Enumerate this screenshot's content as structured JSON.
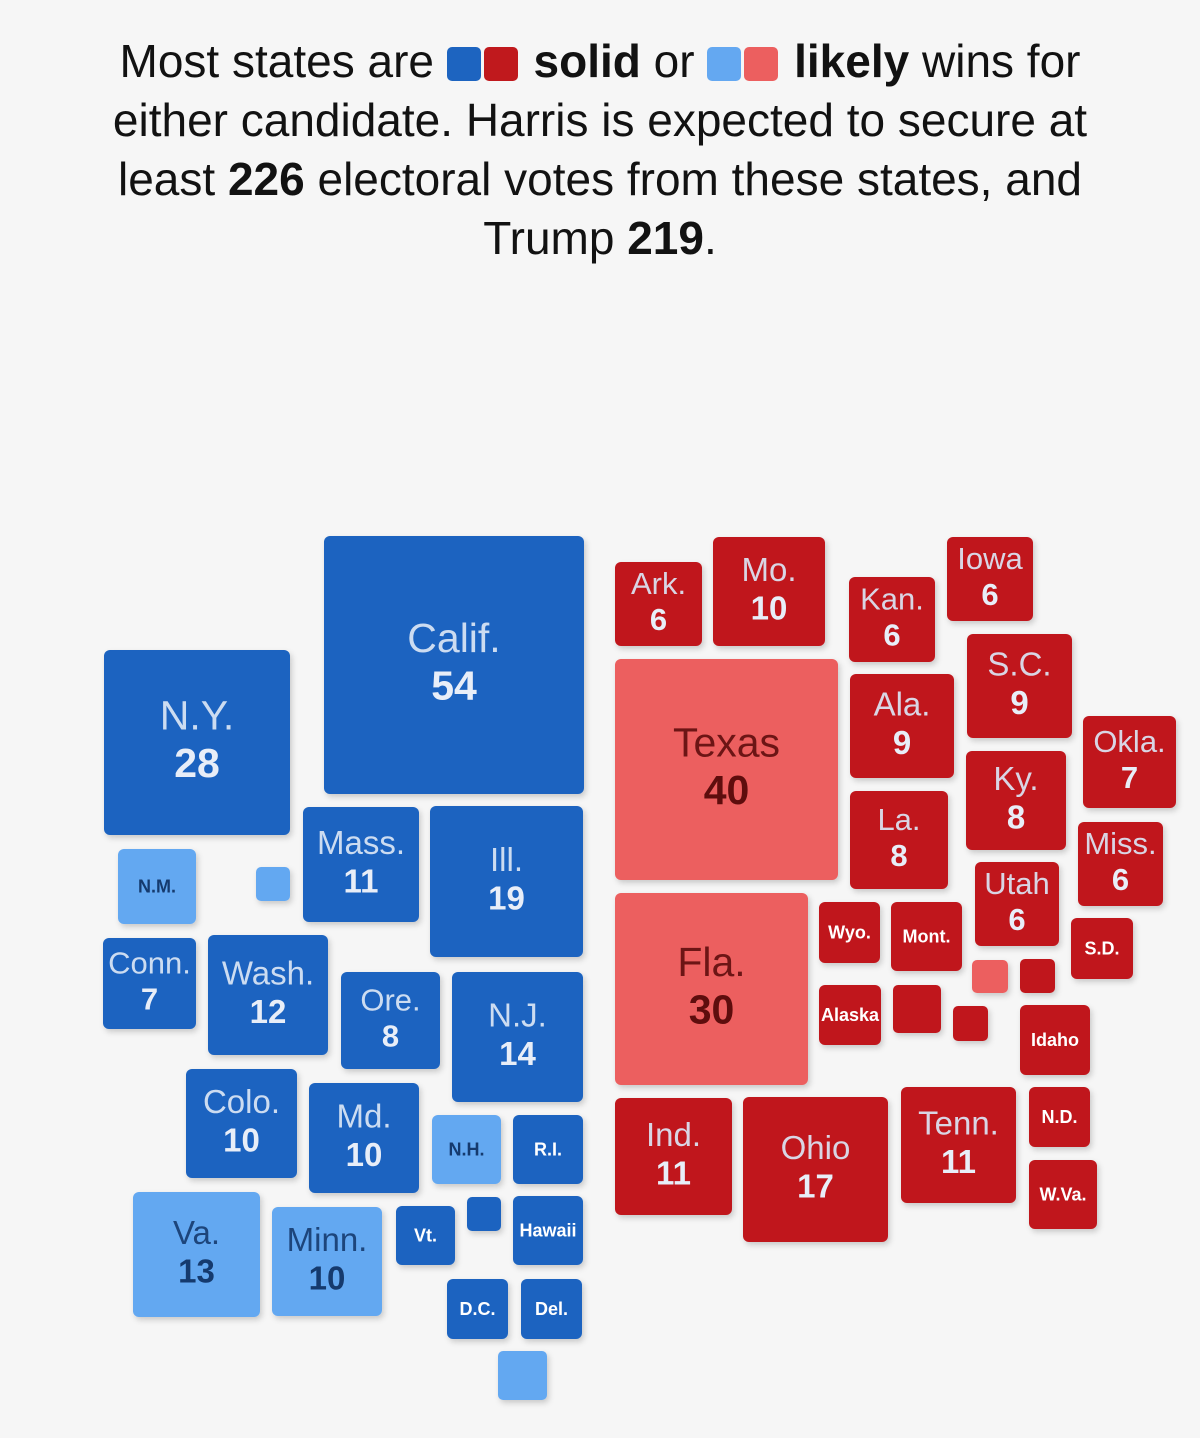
{
  "title_parts": [
    "Most states are",
    "solid",
    "or",
    "likely",
    "wins for either candidate. Harris is expected to secure at least",
    226,
    "electoral votes from these states, and Trump",
    219,
    "."
  ],
  "harris_states": [
    {
      "label": "Calif.",
      "votes": 54,
      "color": "#1d64c0"
    },
    {
      "label": "N.Y.",
      "votes": 28,
      "color": "#1d64c0"
    },
    {
      "label": "Mass.",
      "votes": 11,
      "color": "#1d64c0"
    },
    {
      "label": "Ill.",
      "votes": 19,
      "color": "#1d64c0"
    },
    {
      "label": "N.M.",
      "color": "#64a8f1"
    },
    {
      "label": "Conn.",
      "votes": 7,
      "color": "#1d64c0"
    },
    {
      "label": "Wash.",
      "votes": 12,
      "color": "#1d64c0"
    },
    {
      "label": "Ore.",
      "votes": 8,
      "color": "#1d64c0"
    },
    {
      "label": "N.J.",
      "votes": 14,
      "color": "#1d64c0"
    },
    {
      "label": "Colo.",
      "votes": 10,
      "color": "#1d64c0"
    },
    {
      "label": "Md.",
      "votes": 10,
      "color": "#1d64c0"
    },
    {
      "label": "N.H.",
      "color": "#64a8f1"
    },
    {
      "label": "R.I.",
      "color": "#1d64c0"
    },
    {
      "label": "Va.",
      "votes": 13,
      "color": "#64a8f1"
    },
    {
      "label": "Minn.",
      "votes": 10,
      "color": "#64a8f1"
    },
    {
      "label": "Vt.",
      "color": "#1d64c0"
    },
    {
      "label": "Hawaii",
      "color": "#1d64c0"
    },
    {
      "label": "D.C.",
      "color": "#1d64c0"
    },
    {
      "label": "Del.",
      "color": "#1d64c0"
    }
  ],
  "trump_states": [
    {
      "label": "Ark.",
      "votes": 6,
      "color": "#c0191d"
    },
    {
      "label": "Mo.",
      "votes": 10,
      "color": "#c0191d"
    },
    {
      "label": "Iowa",
      "votes": 6,
      "color": "#c0191d"
    },
    {
      "label": "Kan.",
      "votes": 6,
      "color": "#c0191d"
    },
    {
      "label": "Texas",
      "votes": 40,
      "color": "#ec5f5f"
    },
    {
      "label": "S.C.",
      "votes": 9,
      "color": "#c0191d"
    },
    {
      "label": "Ala.",
      "votes": 9,
      "color": "#c0191d"
    },
    {
      "label": "Okla.",
      "votes": 7,
      "color": "#c0191d"
    },
    {
      "label": "Ky.",
      "votes": 8,
      "color": "#c0191d"
    },
    {
      "label": "La.",
      "votes": 8,
      "color": "#c0191d"
    },
    {
      "label": "Miss.",
      "votes": 6,
      "color": "#c0191d"
    },
    {
      "label": "Utah",
      "votes": 6,
      "color": "#c0191d"
    },
    {
      "label": "Fla.",
      "votes": 30,
      "color": "#ec5f5f"
    },
    {
      "label": "Wyo.",
      "color": "#c0191d"
    },
    {
      "label": "Mont.",
      "color": "#c0191d"
    },
    {
      "label": "S.D.",
      "color": "#c0191d"
    },
    {
      "label": "Alaska",
      "color": "#c0191d"
    },
    {
      "label": "Idaho",
      "color": "#c0191d"
    },
    {
      "label": "N.D.",
      "color": "#c0191d"
    },
    {
      "label": "Ind.",
      "votes": 11,
      "color": "#c0191d"
    },
    {
      "label": "Ohio",
      "votes": 17,
      "color": "#c0191d"
    },
    {
      "label": "Tenn.",
      "votes": 11,
      "color": "#c0191d"
    },
    {
      "label": "W.Va.",
      "color": "#c0191d"
    }
  ]
}
